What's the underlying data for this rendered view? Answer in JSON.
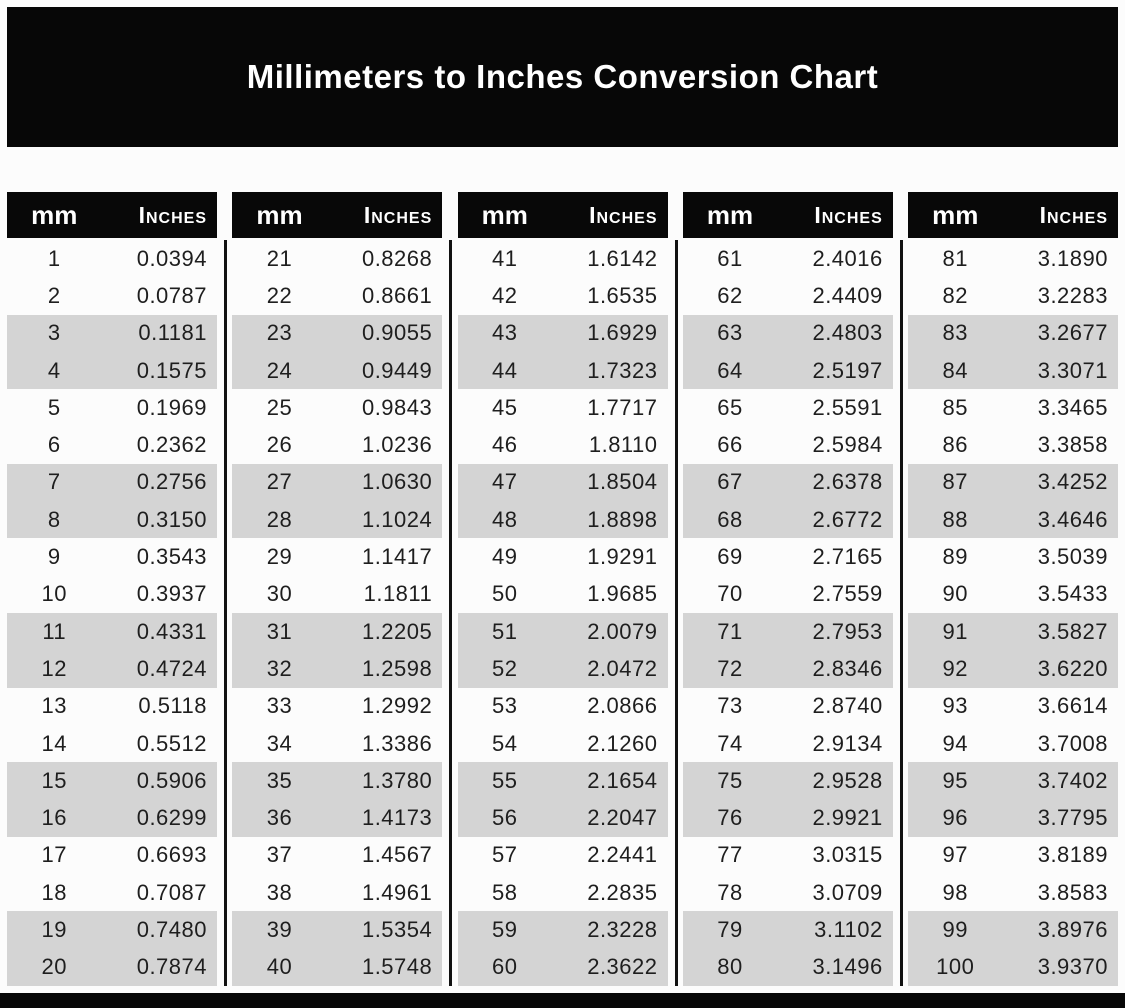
{
  "title": "Millimeters to Inches Conversion Chart",
  "colors": {
    "banner_bg": "#070707",
    "header_bg": "#080808",
    "header_text": "#ffffff",
    "row_stripe_gray": "#d4d4d4",
    "body_text": "#1e1e1e"
  },
  "chart_data": {
    "type": "table",
    "title": "Millimeters to Inches Conversion Chart",
    "columns": [
      "mm",
      "Inches"
    ],
    "column_groups": 5,
    "rows_per_group": 20,
    "rows": [
      [
        1,
        "0.0394"
      ],
      [
        2,
        "0.0787"
      ],
      [
        3,
        "0.1181"
      ],
      [
        4,
        "0.1575"
      ],
      [
        5,
        "0.1969"
      ],
      [
        6,
        "0.2362"
      ],
      [
        7,
        "0.2756"
      ],
      [
        8,
        "0.3150"
      ],
      [
        9,
        "0.3543"
      ],
      [
        10,
        "0.3937"
      ],
      [
        11,
        "0.4331"
      ],
      [
        12,
        "0.4724"
      ],
      [
        13,
        "0.5118"
      ],
      [
        14,
        "0.5512"
      ],
      [
        15,
        "0.5906"
      ],
      [
        16,
        "0.6299"
      ],
      [
        17,
        "0.6693"
      ],
      [
        18,
        "0.7087"
      ],
      [
        19,
        "0.7480"
      ],
      [
        20,
        "0.7874"
      ],
      [
        21,
        "0.8268"
      ],
      [
        22,
        "0.8661"
      ],
      [
        23,
        "0.9055"
      ],
      [
        24,
        "0.9449"
      ],
      [
        25,
        "0.9843"
      ],
      [
        26,
        "1.0236"
      ],
      [
        27,
        "1.0630"
      ],
      [
        28,
        "1.1024"
      ],
      [
        29,
        "1.1417"
      ],
      [
        30,
        "1.1811"
      ],
      [
        31,
        "1.2205"
      ],
      [
        32,
        "1.2598"
      ],
      [
        33,
        "1.2992"
      ],
      [
        34,
        "1.3386"
      ],
      [
        35,
        "1.3780"
      ],
      [
        36,
        "1.4173"
      ],
      [
        37,
        "1.4567"
      ],
      [
        38,
        "1.4961"
      ],
      [
        39,
        "1.5354"
      ],
      [
        40,
        "1.5748"
      ],
      [
        41,
        "1.6142"
      ],
      [
        42,
        "1.6535"
      ],
      [
        43,
        "1.6929"
      ],
      [
        44,
        "1.7323"
      ],
      [
        45,
        "1.7717"
      ],
      [
        46,
        "1.8110"
      ],
      [
        47,
        "1.8504"
      ],
      [
        48,
        "1.8898"
      ],
      [
        49,
        "1.9291"
      ],
      [
        50,
        "1.9685"
      ],
      [
        51,
        "2.0079"
      ],
      [
        52,
        "2.0472"
      ],
      [
        53,
        "2.0866"
      ],
      [
        54,
        "2.1260"
      ],
      [
        55,
        "2.1654"
      ],
      [
        56,
        "2.2047"
      ],
      [
        57,
        "2.2441"
      ],
      [
        58,
        "2.2835"
      ],
      [
        59,
        "2.3228"
      ],
      [
        60,
        "2.3622"
      ],
      [
        61,
        "2.4016"
      ],
      [
        62,
        "2.4409"
      ],
      [
        63,
        "2.4803"
      ],
      [
        64,
        "2.5197"
      ],
      [
        65,
        "2.5591"
      ],
      [
        66,
        "2.5984"
      ],
      [
        67,
        "2.6378"
      ],
      [
        68,
        "2.6772"
      ],
      [
        69,
        "2.7165"
      ],
      [
        70,
        "2.7559"
      ],
      [
        71,
        "2.7953"
      ],
      [
        72,
        "2.8346"
      ],
      [
        73,
        "2.8740"
      ],
      [
        74,
        "2.9134"
      ],
      [
        75,
        "2.9528"
      ],
      [
        76,
        "2.9921"
      ],
      [
        77,
        "3.0315"
      ],
      [
        78,
        "3.0709"
      ],
      [
        79,
        "3.1102"
      ],
      [
        80,
        "3.1496"
      ],
      [
        81,
        "3.1890"
      ],
      [
        82,
        "3.2283"
      ],
      [
        83,
        "3.2677"
      ],
      [
        84,
        "3.3071"
      ],
      [
        85,
        "3.3465"
      ],
      [
        86,
        "3.3858"
      ],
      [
        87,
        "3.4252"
      ],
      [
        88,
        "3.4646"
      ],
      [
        89,
        "3.5039"
      ],
      [
        90,
        "3.5433"
      ],
      [
        91,
        "3.5827"
      ],
      [
        92,
        "3.6220"
      ],
      [
        93,
        "3.6614"
      ],
      [
        94,
        "3.7008"
      ],
      [
        95,
        "3.7402"
      ],
      [
        96,
        "3.7795"
      ],
      [
        97,
        "3.8189"
      ],
      [
        98,
        "3.8583"
      ],
      [
        99,
        "3.8976"
      ],
      [
        100,
        "3.9370"
      ]
    ]
  }
}
